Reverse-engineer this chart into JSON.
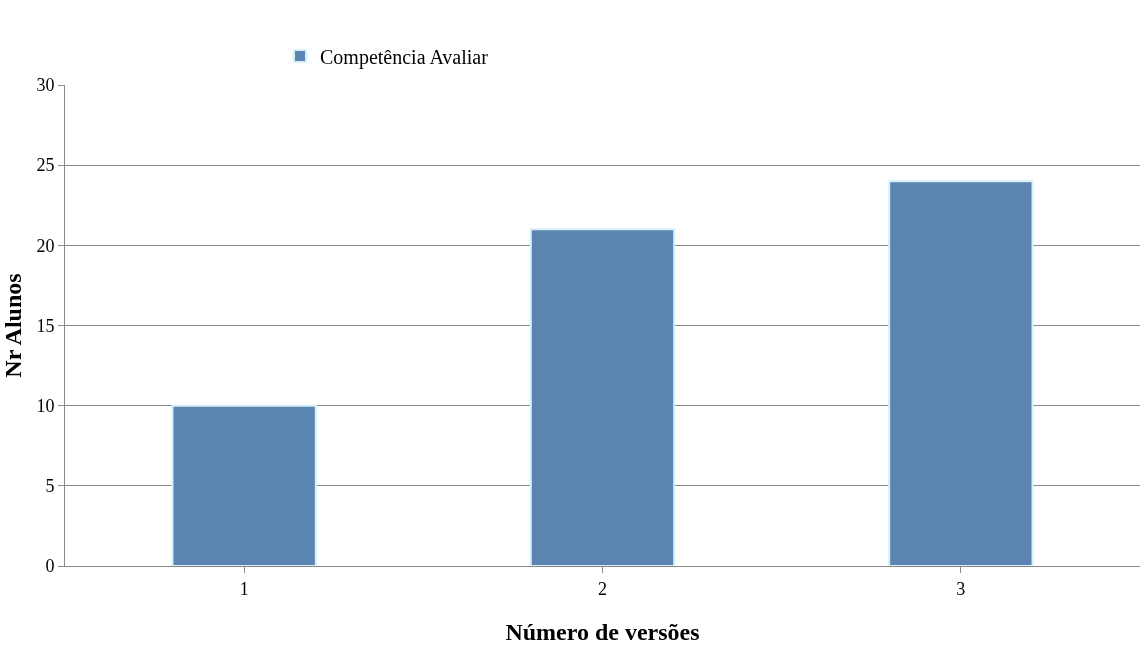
{
  "chart_data": {
    "type": "bar",
    "xlabel": "Número de versões",
    "ylabel": "Nr Alunos",
    "categories": [
      "1",
      "2",
      "3"
    ],
    "series": [
      {
        "name": "Competência Avaliar",
        "color": "#5b84b1",
        "values": [
          10,
          21,
          24
        ]
      }
    ],
    "ylim": [
      0,
      30
    ],
    "yticks": [
      0,
      5,
      10,
      15,
      20,
      25,
      30
    ],
    "grid": "y",
    "legend": "top"
  }
}
